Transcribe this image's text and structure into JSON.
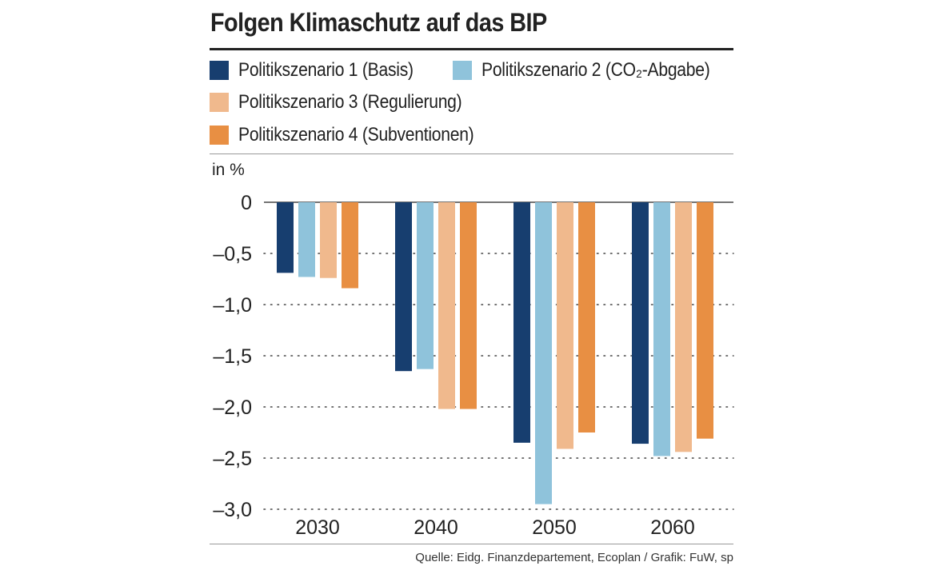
{
  "chart_data": {
    "type": "bar",
    "title": "Folgen Klimaschutz auf das BIP",
    "ylabel": "in %",
    "xlabel": "",
    "categories": [
      "2030",
      "2040",
      "2050",
      "2060"
    ],
    "ylim": [
      -3.0,
      0
    ],
    "yticks": [
      0,
      -0.5,
      -1.0,
      -1.5,
      -2.0,
      -2.5,
      -3.0
    ],
    "ytick_labels": [
      "0",
      "–0,5",
      "–1,0",
      "–1,5",
      "–2,0",
      "–2,5",
      "–3,0"
    ],
    "series": [
      {
        "name": "Politikszenario 1 (Basis)",
        "color": "#173e6f",
        "values": [
          -0.69,
          -1.65,
          -2.35,
          -2.36
        ]
      },
      {
        "name": "Politikszenario 2 (CO₂-Abgabe)",
        "color": "#8fc3db",
        "values": [
          -0.73,
          -1.63,
          -2.95,
          -2.48
        ]
      },
      {
        "name": "Politikszenario 3 (Regulierung)",
        "color": "#f0b98d",
        "values": [
          -0.74,
          -2.02,
          -2.41,
          -2.44
        ]
      },
      {
        "name": "Politikszenario 4 (Subventionen)",
        "color": "#e88f43",
        "values": [
          -0.84,
          -2.02,
          -2.25,
          -2.31
        ]
      }
    ],
    "grid": "dotted-horizontal",
    "legend_position": "top"
  },
  "source": "Quelle: Eidg. Finanzdepartement, Ecoplan / Grafik: FuW, sp"
}
